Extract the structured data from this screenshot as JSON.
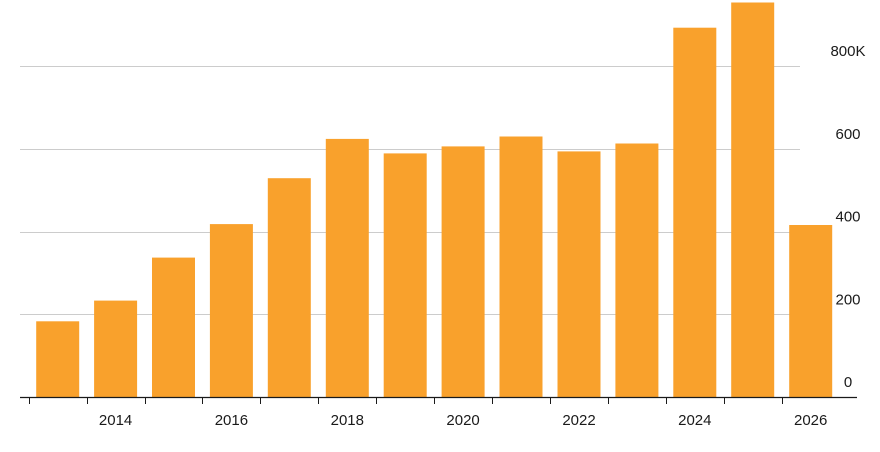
{
  "chart_data": {
    "type": "bar",
    "categories": [
      "2013",
      "2014",
      "2015",
      "2016",
      "2017",
      "2018",
      "2019",
      "2020",
      "2021",
      "2022",
      "2023",
      "2024",
      "2025",
      "2026"
    ],
    "values": [
      183,
      233,
      337,
      418,
      529,
      624,
      589,
      606,
      630,
      594,
      613,
      893,
      954,
      416
    ],
    "bar_color": "#f9a12c",
    "xlim": [
      2012.35,
      2026.8
    ],
    "ylim": [
      0,
      960
    ],
    "x_ticks": [
      {
        "value": 2014,
        "label": "2014"
      },
      {
        "value": 2016,
        "label": "2016"
      },
      {
        "value": 2018,
        "label": "2018"
      },
      {
        "value": 2020,
        "label": "2020"
      },
      {
        "value": 2022,
        "label": "2022"
      },
      {
        "value": 2024,
        "label": "2024"
      },
      {
        "value": 2026,
        "label": "2026"
      }
    ],
    "y_ticks": [
      {
        "value": 0,
        "label": "0"
      },
      {
        "value": 200,
        "label": "200"
      },
      {
        "value": 400,
        "label": "400"
      },
      {
        "value": 600,
        "label": "600"
      },
      {
        "value": 800,
        "label": "800K"
      }
    ],
    "y_axis_side": "right",
    "grid": true,
    "gridline_color": "#cccccc",
    "axis_color": "#1a1a1a",
    "title": "",
    "xlabel": "",
    "ylabel": ""
  }
}
